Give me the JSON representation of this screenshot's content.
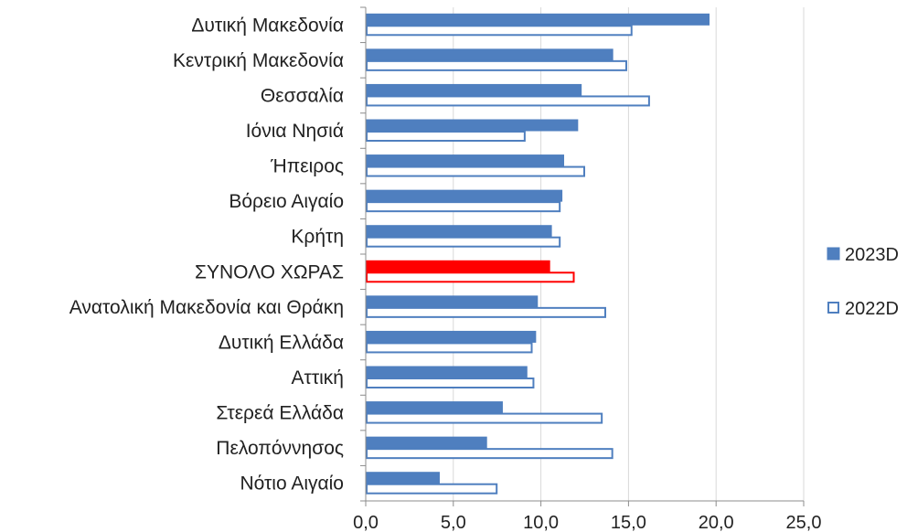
{
  "chart_data": {
    "type": "bar",
    "orientation": "horizontal",
    "categories": [
      "Δυτική Μακεδονία",
      "Κεντρική Μακεδονία",
      "Θεσσαλία",
      "Ιόνια Νησιά",
      "Ήπειρος",
      "Βόρειο Αιγαίο",
      "Κρήτη",
      "ΣΥΝΟΛΟ ΧΩΡΑΣ",
      "Ανατολική Μακεδονία και Θράκη",
      "Δυτική Ελλάδα",
      "Αττική",
      "Στερεά Ελλάδα",
      "Πελοπόννησος",
      "Νότιο Αιγαίο"
    ],
    "highlight_category": "ΣΥΝΟΛΟ ΧΩΡΑΣ",
    "highlight_color": "#ff0000",
    "series": [
      {
        "name": "2023D",
        "style": "filled",
        "color": "#4f7fbf",
        "values": [
          19.6,
          14.1,
          12.3,
          12.1,
          11.3,
          11.2,
          10.6,
          10.5,
          9.8,
          9.7,
          9.2,
          7.8,
          6.9,
          4.2
        ]
      },
      {
        "name": "2022D",
        "style": "outline",
        "color": "#4f7fbf",
        "values": [
          15.2,
          14.9,
          16.2,
          9.1,
          12.5,
          11.1,
          11.1,
          11.9,
          13.7,
          9.5,
          9.6,
          13.5,
          14.1,
          7.5
        ]
      }
    ],
    "xlim": [
      0,
      25
    ],
    "xticks": [
      "0,0",
      "5,0",
      "10,0",
      "15,0",
      "20,0",
      "25,0"
    ],
    "grid": true,
    "legend": "right",
    "title": "",
    "xlabel": "",
    "ylabel": ""
  }
}
